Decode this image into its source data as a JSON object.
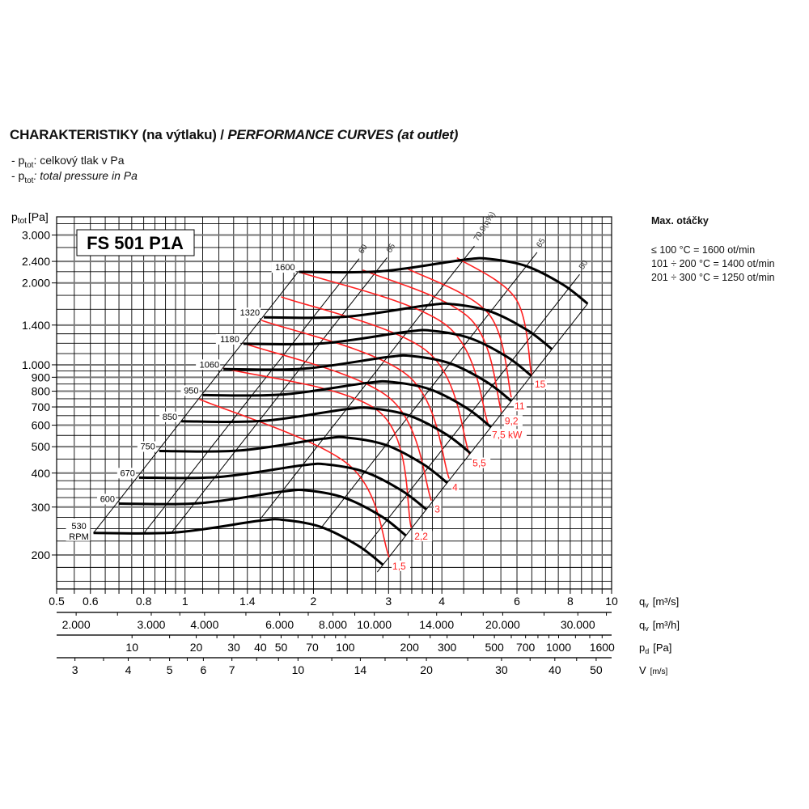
{
  "header": {
    "title_main": "CHARAKTERISTIKY (na výtlaku) / ",
    "title_italic": "PERFORMANCE CURVES (at outlet)",
    "legend": [
      {
        "prefix": "- p",
        "sub": "tot",
        "text": ": celkový tlak v Pa",
        "italic": false
      },
      {
        "prefix": "- p",
        "sub": "tot",
        "text": ": total pressure in Pa",
        "italic": true
      }
    ]
  },
  "max_speed": {
    "title": "Max. otáčky",
    "lines": [
      "≤ 100 °C = 1600 ot/min",
      "101 ÷ 200 °C = 1400 ot/min",
      "201 ÷ 300 °C = 1250 ot/min"
    ]
  },
  "chart_data": {
    "type": "line",
    "model_label": "FS 501 P1A",
    "grid": true,
    "colors": {
      "fan_curve": "#000000",
      "power_curve": "#ff2020",
      "efficiency_line": "#000000"
    },
    "y_axis": {
      "label": "p",
      "label_sub": "tot",
      "unit": "[Pa]",
      "scale": "log",
      "ylim": [
        150,
        3500
      ],
      "ticks": [
        {
          "value": 3000,
          "label": "3.000"
        },
        {
          "value": 2400,
          "label": "2.400"
        },
        {
          "value": 2000,
          "label": "2.000"
        },
        {
          "value": 1400,
          "label": "1.400"
        },
        {
          "value": 1000,
          "label": "1.000"
        },
        {
          "value": 900,
          "label": "900"
        },
        {
          "value": 800,
          "label": "800"
        },
        {
          "value": 700,
          "label": "700"
        },
        {
          "value": 600,
          "label": "600"
        },
        {
          "value": 500,
          "label": "500"
        },
        {
          "value": 400,
          "label": "400"
        },
        {
          "value": 300,
          "label": "300"
        },
        {
          "value": 200,
          "label": "200"
        }
      ]
    },
    "x_axis": {
      "label": "q",
      "label_sub": "v",
      "unit": "[m³/s]",
      "scale": "log",
      "xlim": [
        0.5,
        10
      ],
      "ticks": [
        {
          "value": 0.5,
          "label": "0.5"
        },
        {
          "value": 0.6,
          "label": "0.6"
        },
        {
          "value": 0.8,
          "label": "0.8"
        },
        {
          "value": 1,
          "label": "1"
        },
        {
          "value": 1.4,
          "label": "1.4"
        },
        {
          "value": 2,
          "label": "2"
        },
        {
          "value": 3,
          "label": "3"
        },
        {
          "value": 4,
          "label": "4"
        },
        {
          "value": 6,
          "label": "6"
        },
        {
          "value": 8,
          "label": "8"
        },
        {
          "value": 10,
          "label": "10"
        }
      ]
    },
    "secondary_axes": [
      {
        "id": "m3h",
        "label": "q",
        "label_sub": "v",
        "unit": "[m³/h]",
        "ticks": [
          {
            "value": 2000,
            "label": "2.000"
          },
          {
            "value": 3000,
            "label": "3.000"
          },
          {
            "value": 4000,
            "label": "4.000"
          },
          {
            "value": 6000,
            "label": "6.000"
          },
          {
            "value": 8000,
            "label": "8.000"
          },
          {
            "value": 10000,
            "label": "10.000"
          },
          {
            "value": 14000,
            "label": "14.000"
          },
          {
            "value": 20000,
            "label": "20.000"
          },
          {
            "value": 30000,
            "label": "30.000"
          }
        ]
      },
      {
        "id": "pd",
        "label": "p",
        "label_sub": "d",
        "unit": "[Pa]",
        "ticks": [
          {
            "value": 10,
            "label": "10"
          },
          {
            "value": 20,
            "label": "20"
          },
          {
            "value": 30,
            "label": "30"
          },
          {
            "value": 40,
            "label": "40"
          },
          {
            "value": 50,
            "label": "50"
          },
          {
            "value": 70,
            "label": "70"
          },
          {
            "value": 100,
            "label": "100"
          },
          {
            "value": 200,
            "label": "200"
          },
          {
            "value": 300,
            "label": "300"
          },
          {
            "value": 500,
            "label": "500"
          },
          {
            "value": 700,
            "label": "700"
          },
          {
            "value": 1000,
            "label": "1000"
          },
          {
            "value": 1600,
            "label": "1600"
          }
        ]
      },
      {
        "id": "v",
        "label": "V",
        "label_sub": "",
        "unit": "[m/s]",
        "ticks": [
          {
            "value": 3,
            "label": "3"
          },
          {
            "value": 4,
            "label": "4"
          },
          {
            "value": 5,
            "label": "5"
          },
          {
            "value": 6,
            "label": "6"
          },
          {
            "value": 7,
            "label": "7"
          },
          {
            "value": 10,
            "label": "10"
          },
          {
            "value": 14,
            "label": "14"
          },
          {
            "value": 20,
            "label": "20"
          },
          {
            "value": 30,
            "label": "30"
          },
          {
            "value": 40,
            "label": "40"
          },
          {
            "value": 50,
            "label": "50"
          }
        ]
      }
    ],
    "fan_curves": [
      {
        "rpm": "530",
        "unit": "RPM",
        "qv": [
          0.61,
          0.95,
          1.49,
          1.71,
          2.09,
          2.55,
          2.91
        ],
        "ptot": [
          241,
          242,
          267,
          269,
          253,
          216,
          184
        ]
      },
      {
        "rpm": "600",
        "qv": [
          0.7,
          1.08,
          1.69,
          1.94,
          2.37,
          2.89,
          3.29
        ],
        "ptot": [
          309,
          310,
          342,
          345,
          324,
          277,
          236
        ]
      },
      {
        "rpm": "670",
        "qv": [
          0.78,
          1.2,
          1.88,
          2.16,
          2.64,
          3.22,
          3.68
        ],
        "ptot": [
          385,
          387,
          427,
          430,
          404,
          345,
          294
        ]
      },
      {
        "rpm": "750",
        "qv": [
          0.87,
          1.34,
          2.11,
          2.42,
          2.96,
          3.61,
          4.12
        ],
        "ptot": [
          482,
          484,
          535,
          539,
          507,
          432,
          368
        ]
      },
      {
        "rpm": "850",
        "qv": [
          0.98,
          1.52,
          2.39,
          2.74,
          3.35,
          4.09,
          4.67
        ],
        "ptot": [
          620,
          622,
          687,
          692,
          651,
          556,
          473
        ]
      },
      {
        "rpm": "950",
        "qv": [
          1.1,
          1.7,
          2.67,
          3.06,
          3.75,
          4.57,
          5.21
        ],
        "ptot": [
          774,
          778,
          858,
          864,
          813,
          694,
          591
        ]
      },
      {
        "rpm": "1060",
        "qv": [
          1.23,
          1.9,
          2.98,
          3.42,
          4.18,
          5.1,
          5.82
        ],
        "ptot": [
          964,
          968,
          1068,
          1076,
          1012,
          864,
          736
        ]
      },
      {
        "rpm": "1180",
        "qv": [
          1.37,
          2.11,
          3.32,
          3.81,
          4.65,
          5.68,
          6.48
        ],
        "ptot": [
          1195,
          1200,
          1324,
          1333,
          1254,
          1071,
          912
        ]
      },
      {
        "rpm": "1320",
        "qv": [
          1.53,
          2.37,
          3.71,
          4.26,
          5.21,
          6.35,
          7.25
        ],
        "ptot": [
          1495,
          1501,
          1656,
          1669,
          1569,
          1340,
          1141
        ]
      },
      {
        "rpm": "1600",
        "qv": [
          1.85,
          2.87,
          4.5,
          5.16,
          6.31,
          7.7,
          8.79
        ],
        "ptot": [
          2196,
          2206,
          2433,
          2452,
          2306,
          1969,
          1677
        ]
      }
    ],
    "efficiency_lines": [
      {
        "label": "",
        "qv": 0.61,
        "ptot": 241
      },
      {
        "label": "60",
        "qv": 0.8,
        "ptot": 240
      },
      {
        "label": "65",
        "qv": 0.93,
        "ptot": 242
      },
      {
        "label": "70,9(η%)",
        "qv": 1.49,
        "ptot": 267
      },
      {
        "label": "65",
        "qv": 2.09,
        "ptot": 253
      },
      {
        "label": "50",
        "qv": 2.63,
        "ptot": 210
      },
      {
        "label": "",
        "qv": 2.91,
        "ptot": 184
      }
    ],
    "power_curves": [
      {
        "label": "1,5",
        "qv": [
          1.08,
          2.42,
          3.01
        ],
        "ptot": [
          748,
          429,
          196
        ]
      },
      {
        "label": "2,2",
        "qv": [
          1.23,
          2.86,
          3.39
        ],
        "ptot": [
          972,
          670,
          252
        ]
      },
      {
        "label": "3",
        "qv": [
          1.37,
          3.02,
          3.78
        ],
        "ptot": [
          1202,
          754,
          317
        ]
      },
      {
        "label": "4",
        "qv": [
          1.51,
          3.33,
          4.16
        ],
        "ptot": [
          1458,
          913,
          382
        ]
      },
      {
        "label": "5,5",
        "qv": [
          1.68,
          3.71,
          4.64
        ],
        "ptot": [
          1779,
          1115,
          469
        ]
      },
      {
        "label": "7,5 kW",
        "qv": [
          1.85,
          4.12,
          5.15
        ],
        "ptot": [
          2196,
          1389,
          597
        ]
      },
      {
        "label": "9,2",
        "qv": [
          2.61,
          4.68,
          5.52
        ],
        "ptot": [
          2232,
          1468,
          670
        ]
      },
      {
        "label": "11",
        "qv": [
          3.31,
          5.15,
          5.82
        ],
        "ptot": [
          2263,
          1540,
          759
        ]
      },
      {
        "label": "15",
        "qv": [
          4.34,
          5.97,
          6.49
        ],
        "ptot": [
          2475,
          1743,
          913
        ]
      }
    ]
  }
}
